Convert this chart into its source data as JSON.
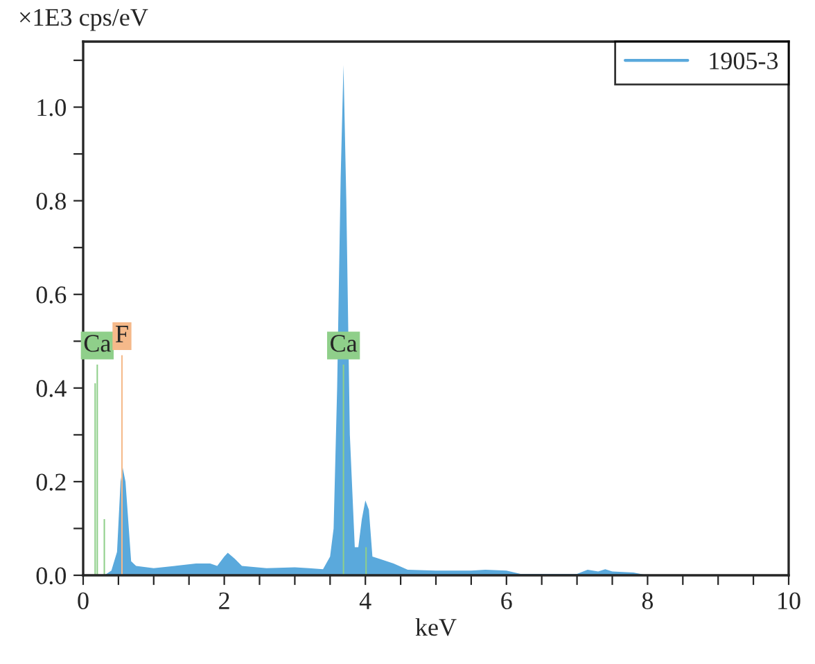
{
  "chart_data": {
    "type": "area",
    "xlabel": "keV",
    "ylabel": "×1E3 cps/eV",
    "xlim": [
      0,
      10
    ],
    "ylim": [
      0,
      1.14
    ],
    "xticks": [
      0,
      {
        "value": 0.5,
        "label": null
      },
      {
        "value": 1,
        "label": null
      },
      {
        "value": 1.5,
        "label": null
      },
      2,
      {
        "value": 2.5,
        "label": null
      },
      {
        "value": 3,
        "label": null
      },
      {
        "value": 3.5,
        "label": null
      },
      4,
      {
        "value": 4.5,
        "label": null
      },
      {
        "value": 5,
        "label": null
      },
      {
        "value": 5.5,
        "label": null
      },
      6,
      {
        "value": 6.5,
        "label": null
      },
      {
        "value": 7,
        "label": null
      },
      {
        "value": 7.5,
        "label": null
      },
      8,
      {
        "value": 8.5,
        "label": null
      },
      {
        "value": 9,
        "label": null
      },
      {
        "value": 9.5,
        "label": null
      },
      10
    ],
    "yticks": [
      {
        "value": 0,
        "label": "0.0"
      },
      {
        "value": 0.1,
        "label": null
      },
      {
        "value": 0.2,
        "label": "0.2"
      },
      {
        "value": 0.3,
        "label": null
      },
      {
        "value": 0.4,
        "label": "0.4"
      },
      {
        "value": 0.5,
        "label": null
      },
      {
        "value": 0.6,
        "label": "0.6"
      },
      {
        "value": 0.7,
        "label": null
      },
      {
        "value": 0.8,
        "label": "0.8"
      },
      {
        "value": 0.9,
        "label": null
      },
      {
        "value": 1.0,
        "label": "1.0"
      },
      {
        "value": 1.1,
        "label": null
      }
    ],
    "legend": "top right",
    "grid": false,
    "series": [
      {
        "name": "1905-3",
        "color": "#5aa9dc",
        "x": [
          0,
          0.3,
          0.4,
          0.48,
          0.53,
          0.56,
          0.6,
          0.68,
          0.75,
          1.0,
          1.3,
          1.6,
          1.8,
          1.9,
          2.0,
          2.05,
          2.15,
          2.25,
          2.6,
          3.0,
          3.2,
          3.4,
          3.5,
          3.55,
          3.6,
          3.65,
          3.69,
          3.73,
          3.78,
          3.85,
          3.9,
          3.95,
          4.0,
          4.05,
          4.1,
          4.2,
          4.4,
          4.6,
          5.0,
          5.5,
          5.7,
          6.0,
          6.2,
          7.0,
          7.15,
          7.3,
          7.4,
          7.5,
          7.8,
          8.0,
          10
        ],
        "values": [
          0,
          0,
          0.01,
          0.05,
          0.2,
          0.23,
          0.2,
          0.03,
          0.02,
          0.015,
          0.02,
          0.025,
          0.025,
          0.02,
          0.04,
          0.048,
          0.035,
          0.02,
          0.015,
          0.017,
          0.015,
          0.013,
          0.04,
          0.1,
          0.4,
          0.85,
          1.09,
          0.8,
          0.3,
          0.06,
          0.06,
          0.12,
          0.16,
          0.14,
          0.04,
          0.035,
          0.025,
          0.012,
          0.01,
          0.01,
          0.012,
          0.01,
          0.003,
          0.003,
          0.012,
          0.008,
          0.013,
          0.008,
          0.006,
          0,
          0
        ]
      },
      {
        "type": "bar",
        "color": "#8fcf8a",
        "x": [
          0.17,
          0.2,
          0.3,
          3.69,
          4.01
        ],
        "values": [
          0.41,
          0.45,
          0.12,
          0.45,
          0.06
        ]
      },
      {
        "type": "bar",
        "color": "#f5b98a",
        "x": [
          0.55
        ],
        "values": [
          0.47
        ]
      }
    ],
    "annotations": [
      {
        "text": "Ca",
        "x": 0.2,
        "y": 0.45
      },
      {
        "text": "F",
        "x": 0.55,
        "y": 0.47
      },
      {
        "text": "Ca",
        "x": 3.69,
        "y": 0.45
      }
    ]
  }
}
